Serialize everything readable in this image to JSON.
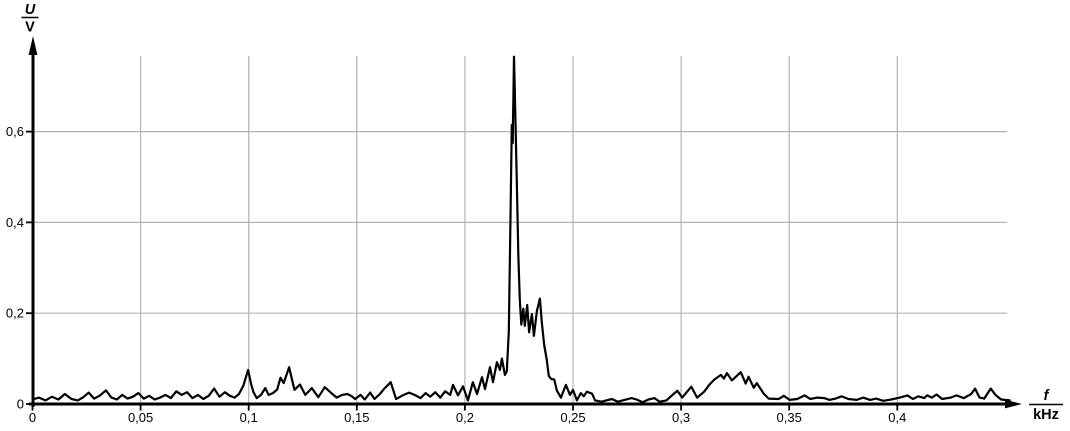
{
  "figure": {
    "background_color": "#ffffff",
    "curve_color": "#000000",
    "grid_color": "#b3b3b3",
    "axis_color": "#000000",
    "y_axis": {
      "title_numerator": "U",
      "title_denominator": "V",
      "ticks": [
        {
          "value": 0,
          "label": "0"
        },
        {
          "value": 0.2,
          "label": "0,2"
        },
        {
          "value": 0.4,
          "label": "0,4"
        },
        {
          "value": 0.6,
          "label": "0,6"
        }
      ]
    },
    "x_axis": {
      "title_numerator": "f",
      "title_denominator": "kHz",
      "ticks": [
        {
          "value": 0,
          "label": "0"
        },
        {
          "value": 0.05,
          "label": "0,05"
        },
        {
          "value": 0.1,
          "label": "0,1"
        },
        {
          "value": 0.15,
          "label": "0,15"
        },
        {
          "value": 0.2,
          "label": "0,2"
        },
        {
          "value": 0.25,
          "label": "0,25"
        },
        {
          "value": 0.3,
          "label": "0,3"
        },
        {
          "value": 0.35,
          "label": "0,35"
        },
        {
          "value": 0.4,
          "label": "0,4"
        }
      ]
    }
  },
  "chart_data": {
    "type": "line",
    "title": "",
    "xlabel": "f / kHz",
    "ylabel": "U / V",
    "xlim": [
      0,
      0.465
    ],
    "ylim": [
      0,
      0.766
    ],
    "grid": true,
    "x_gridlines": [
      0.05,
      0.1,
      0.15,
      0.2,
      0.25,
      0.3,
      0.35,
      0.4
    ],
    "y_gridlines": [
      0.2,
      0.4,
      0.6
    ],
    "main_peak": {
      "f_kHz": 0.223,
      "U_V": 0.765
    },
    "secondary_peaks": [
      {
        "f_kHz": 0.235,
        "U_V": 0.232
      },
      {
        "f_kHz": 0.119,
        "U_V": 0.081
      },
      {
        "f_kHz": 0.1,
        "U_V": 0.075
      },
      {
        "f_kHz": 0.328,
        "U_V": 0.07
      }
    ],
    "points": [
      [
        0.0,
        0.01
      ],
      [
        0.003,
        0.014
      ],
      [
        0.006,
        0.008
      ],
      [
        0.009,
        0.016
      ],
      [
        0.012,
        0.01
      ],
      [
        0.015,
        0.022
      ],
      [
        0.018,
        0.011
      ],
      [
        0.021,
        0.008
      ],
      [
        0.0235,
        0.015
      ],
      [
        0.026,
        0.025
      ],
      [
        0.0285,
        0.012
      ],
      [
        0.031,
        0.018
      ],
      [
        0.034,
        0.03
      ],
      [
        0.0365,
        0.014
      ],
      [
        0.039,
        0.01
      ],
      [
        0.0415,
        0.02
      ],
      [
        0.044,
        0.012
      ],
      [
        0.0465,
        0.016
      ],
      [
        0.049,
        0.024
      ],
      [
        0.0515,
        0.012
      ],
      [
        0.054,
        0.018
      ],
      [
        0.0565,
        0.01
      ],
      [
        0.059,
        0.014
      ],
      [
        0.0615,
        0.02
      ],
      [
        0.064,
        0.013
      ],
      [
        0.0665,
        0.028
      ],
      [
        0.069,
        0.02
      ],
      [
        0.0715,
        0.026
      ],
      [
        0.074,
        0.013
      ],
      [
        0.0765,
        0.02
      ],
      [
        0.079,
        0.011
      ],
      [
        0.0815,
        0.018
      ],
      [
        0.084,
        0.034
      ],
      [
        0.0865,
        0.016
      ],
      [
        0.089,
        0.026
      ],
      [
        0.0913,
        0.018
      ],
      [
        0.0935,
        0.014
      ],
      [
        0.0955,
        0.022
      ],
      [
        0.0975,
        0.04
      ],
      [
        0.0997,
        0.075
      ],
      [
        0.1012,
        0.042
      ],
      [
        0.1022,
        0.026
      ],
      [
        0.1037,
        0.013
      ],
      [
        0.1057,
        0.02
      ],
      [
        0.1077,
        0.035
      ],
      [
        0.1092,
        0.02
      ],
      [
        0.1112,
        0.024
      ],
      [
        0.1132,
        0.032
      ],
      [
        0.1147,
        0.058
      ],
      [
        0.1162,
        0.046
      ],
      [
        0.1187,
        0.081
      ],
      [
        0.1202,
        0.05
      ],
      [
        0.1212,
        0.031
      ],
      [
        0.1237,
        0.043
      ],
      [
        0.1262,
        0.02
      ],
      [
        0.1292,
        0.035
      ],
      [
        0.1322,
        0.015
      ],
      [
        0.1352,
        0.037
      ],
      [
        0.1382,
        0.024
      ],
      [
        0.1407,
        0.014
      ],
      [
        0.1432,
        0.02
      ],
      [
        0.1457,
        0.022
      ],
      [
        0.1477,
        0.017
      ],
      [
        0.1492,
        0.011
      ],
      [
        0.1517,
        0.02
      ],
      [
        0.1537,
        0.01
      ],
      [
        0.1562,
        0.025
      ],
      [
        0.1582,
        0.011
      ],
      [
        0.1607,
        0.022
      ],
      [
        0.1627,
        0.034
      ],
      [
        0.1657,
        0.048
      ],
      [
        0.1682,
        0.011
      ],
      [
        0.1712,
        0.019
      ],
      [
        0.1742,
        0.025
      ],
      [
        0.1772,
        0.019
      ],
      [
        0.1795,
        0.013
      ],
      [
        0.1818,
        0.024
      ],
      [
        0.184,
        0.016
      ],
      [
        0.1863,
        0.026
      ],
      [
        0.1886,
        0.014
      ],
      [
        0.1909,
        0.028
      ],
      [
        0.1932,
        0.02
      ],
      [
        0.1945,
        0.042
      ],
      [
        0.1968,
        0.019
      ],
      [
        0.1991,
        0.039
      ],
      [
        0.2014,
        0.008
      ],
      [
        0.2037,
        0.048
      ],
      [
        0.2056,
        0.022
      ],
      [
        0.2079,
        0.059
      ],
      [
        0.2093,
        0.033
      ],
      [
        0.2116,
        0.081
      ],
      [
        0.213,
        0.048
      ],
      [
        0.2148,
        0.092
      ],
      [
        0.2162,
        0.075
      ],
      [
        0.2171,
        0.1
      ],
      [
        0.2185,
        0.064
      ],
      [
        0.2194,
        0.072
      ],
      [
        0.2203,
        0.16
      ],
      [
        0.221,
        0.38
      ],
      [
        0.2217,
        0.615
      ],
      [
        0.2221,
        0.575
      ],
      [
        0.2227,
        0.765
      ],
      [
        0.2233,
        0.64
      ],
      [
        0.224,
        0.49
      ],
      [
        0.2247,
        0.33
      ],
      [
        0.2254,
        0.23
      ],
      [
        0.2261,
        0.175
      ],
      [
        0.227,
        0.21
      ],
      [
        0.2277,
        0.172
      ],
      [
        0.2288,
        0.218
      ],
      [
        0.2297,
        0.158
      ],
      [
        0.231,
        0.198
      ],
      [
        0.2319,
        0.15
      ],
      [
        0.2333,
        0.205
      ],
      [
        0.2347,
        0.232
      ],
      [
        0.2356,
        0.178
      ],
      [
        0.2367,
        0.13
      ],
      [
        0.2379,
        0.097
      ],
      [
        0.2388,
        0.062
      ],
      [
        0.2399,
        0.055
      ],
      [
        0.2413,
        0.054
      ],
      [
        0.2425,
        0.03
      ],
      [
        0.2444,
        0.014
      ],
      [
        0.2467,
        0.042
      ],
      [
        0.2486,
        0.02
      ],
      [
        0.25,
        0.031
      ],
      [
        0.2518,
        0.008
      ],
      [
        0.2536,
        0.024
      ],
      [
        0.255,
        0.017
      ],
      [
        0.2564,
        0.027
      ],
      [
        0.2588,
        0.023
      ],
      [
        0.2602,
        0.008
      ],
      [
        0.2632,
        0.005
      ],
      [
        0.268,
        0.011
      ],
      [
        0.2707,
        0.005
      ],
      [
        0.2771,
        0.013
      ],
      [
        0.2794,
        0.01
      ],
      [
        0.2822,
        0.004
      ],
      [
        0.2849,
        0.01
      ],
      [
        0.2877,
        0.013
      ],
      [
        0.29,
        0.005
      ],
      [
        0.2932,
        0.008
      ],
      [
        0.296,
        0.02
      ],
      [
        0.2983,
        0.029
      ],
      [
        0.3005,
        0.014
      ],
      [
        0.3047,
        0.038
      ],
      [
        0.3074,
        0.014
      ],
      [
        0.3107,
        0.027
      ],
      [
        0.313,
        0.042
      ],
      [
        0.3152,
        0.053
      ],
      [
        0.3184,
        0.064
      ],
      [
        0.3198,
        0.056
      ],
      [
        0.3212,
        0.068
      ],
      [
        0.3235,
        0.052
      ],
      [
        0.3276,
        0.07
      ],
      [
        0.3299,
        0.045
      ],
      [
        0.3312,
        0.06
      ],
      [
        0.3336,
        0.036
      ],
      [
        0.335,
        0.046
      ],
      [
        0.3382,
        0.023
      ],
      [
        0.3405,
        0.012
      ],
      [
        0.3452,
        0.011
      ],
      [
        0.3475,
        0.018
      ],
      [
        0.3502,
        0.009
      ],
      [
        0.3537,
        0.011
      ],
      [
        0.3572,
        0.019
      ],
      [
        0.3597,
        0.011
      ],
      [
        0.363,
        0.014
      ],
      [
        0.3662,
        0.013
      ],
      [
        0.3687,
        0.009
      ],
      [
        0.3714,
        0.012
      ],
      [
        0.3742,
        0.017
      ],
      [
        0.3774,
        0.011
      ],
      [
        0.3812,
        0.009
      ],
      [
        0.3842,
        0.014
      ],
      [
        0.3874,
        0.009
      ],
      [
        0.3902,
        0.012
      ],
      [
        0.3935,
        0.007
      ],
      [
        0.3972,
        0.01
      ],
      [
        0.4012,
        0.014
      ],
      [
        0.4047,
        0.019
      ],
      [
        0.4072,
        0.011
      ],
      [
        0.4097,
        0.017
      ],
      [
        0.4124,
        0.013
      ],
      [
        0.4138,
        0.019
      ],
      [
        0.416,
        0.014
      ],
      [
        0.4182,
        0.021
      ],
      [
        0.4207,
        0.011
      ],
      [
        0.4247,
        0.014
      ],
      [
        0.4274,
        0.019
      ],
      [
        0.4307,
        0.013
      ],
      [
        0.4342,
        0.022
      ],
      [
        0.436,
        0.034
      ],
      [
        0.438,
        0.014
      ],
      [
        0.4402,
        0.012
      ],
      [
        0.4432,
        0.034
      ],
      [
        0.4454,
        0.02
      ],
      [
        0.448,
        0.01
      ],
      [
        0.452,
        0.008
      ]
    ]
  }
}
